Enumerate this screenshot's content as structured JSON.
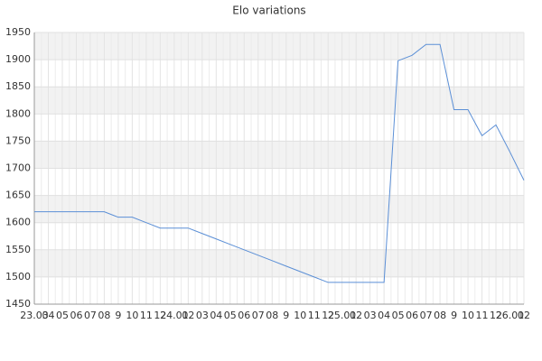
{
  "chart_data": {
    "type": "line",
    "title": "Elo variations",
    "categories": [
      "23.03",
      "04",
      "05",
      "06",
      "07",
      "08",
      "9",
      "10",
      "11",
      "12",
      "24.01",
      "02",
      "03",
      "04",
      "05",
      "06",
      "07",
      "08",
      "9",
      "10",
      "11",
      "12",
      "25.01",
      "02",
      "03",
      "04",
      "05",
      "06",
      "07",
      "08",
      "9",
      "10",
      "11",
      "12",
      "26.01",
      "02"
    ],
    "series": [
      {
        "name": "Elo",
        "color": "#5b8fd6",
        "values": [
          1620,
          1620,
          1620,
          1620,
          1620,
          1620,
          1610,
          1610,
          1600,
          1590,
          1590,
          1590,
          1580,
          1570,
          1560,
          1550,
          1540,
          1530,
          1520,
          1510,
          1500,
          1490,
          1490,
          1490,
          1490,
          1490,
          1898,
          1908,
          1928,
          1928,
          1808,
          1808,
          1760,
          1780,
          1730,
          1678
        ]
      }
    ],
    "ylim": [
      1450,
      1950
    ],
    "yticks": [
      1450,
      1500,
      1550,
      1600,
      1650,
      1700,
      1750,
      1800,
      1850,
      1900,
      1950
    ],
    "grid": true
  }
}
